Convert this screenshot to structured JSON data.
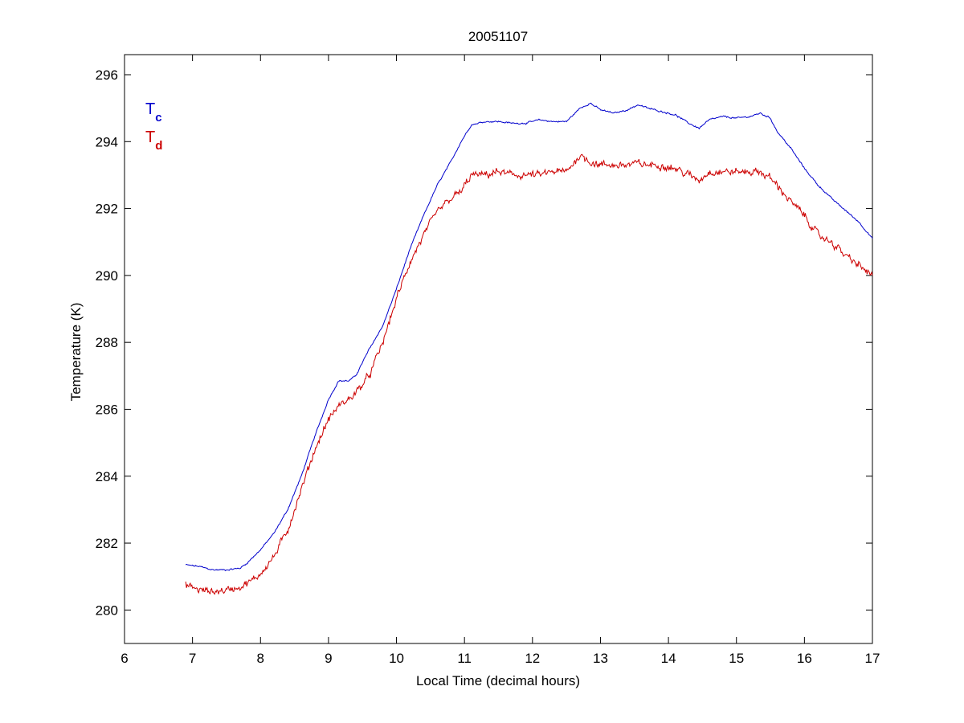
{
  "chart_data": {
    "type": "line",
    "title": "20051107",
    "xlabel": "Local Time (decimal hours)",
    "ylabel": "Temperature (K)",
    "xlim": [
      6,
      17
    ],
    "ylim": [
      279,
      296.6
    ],
    "xticks": [
      6,
      7,
      8,
      9,
      10,
      11,
      12,
      13,
      14,
      15,
      16,
      17
    ],
    "yticks": [
      280,
      282,
      284,
      286,
      288,
      290,
      292,
      294,
      296
    ],
    "grid": false,
    "legend_position": "top-left",
    "series": [
      {
        "name": "T",
        "subscript": "c",
        "color": "#0000cc",
        "noise": 0.03,
        "x": [
          6.9,
          7.1,
          7.3,
          7.5,
          7.7,
          7.8,
          7.9,
          8.0,
          8.2,
          8.4,
          8.6,
          8.8,
          9.0,
          9.15,
          9.3,
          9.4,
          9.6,
          9.8,
          10.0,
          10.2,
          10.4,
          10.6,
          10.8,
          10.95,
          11.1,
          11.3,
          11.5,
          11.7,
          11.9,
          12.1,
          12.3,
          12.5,
          12.7,
          12.85,
          13.0,
          13.2,
          13.4,
          13.55,
          13.7,
          13.9,
          14.1,
          14.3,
          14.45,
          14.6,
          14.8,
          15.0,
          15.2,
          15.35,
          15.5,
          15.6,
          15.8,
          16.0,
          16.2,
          16.4,
          16.6,
          16.8,
          17.0
        ],
        "y": [
          281.35,
          281.3,
          281.2,
          281.2,
          281.25,
          281.4,
          281.6,
          281.8,
          282.3,
          283.0,
          284.0,
          285.2,
          286.3,
          286.85,
          286.85,
          287.0,
          287.8,
          288.5,
          289.6,
          290.8,
          291.8,
          292.7,
          293.4,
          294.0,
          294.5,
          294.6,
          294.6,
          294.55,
          294.55,
          294.65,
          294.6,
          294.6,
          295.0,
          295.15,
          294.95,
          294.85,
          294.95,
          295.1,
          295.0,
          294.9,
          294.8,
          294.55,
          294.4,
          294.65,
          294.75,
          294.7,
          294.75,
          294.85,
          294.7,
          294.3,
          293.8,
          293.2,
          292.7,
          292.3,
          291.95,
          291.6,
          291.1
        ]
      },
      {
        "name": "T",
        "subscript": "d",
        "color": "#cc0000",
        "noise": 0.14,
        "x": [
          6.9,
          7.1,
          7.3,
          7.5,
          7.7,
          7.8,
          7.9,
          8.0,
          8.2,
          8.4,
          8.6,
          8.8,
          9.0,
          9.15,
          9.3,
          9.4,
          9.6,
          9.8,
          10.0,
          10.2,
          10.4,
          10.6,
          10.8,
          10.95,
          11.1,
          11.3,
          11.5,
          11.7,
          11.9,
          12.1,
          12.3,
          12.5,
          12.7,
          12.85,
          13.0,
          13.2,
          13.4,
          13.55,
          13.7,
          13.9,
          14.1,
          14.3,
          14.45,
          14.6,
          14.8,
          15.0,
          15.2,
          15.35,
          15.5,
          15.6,
          15.8,
          16.0,
          16.2,
          16.4,
          16.6,
          16.8,
          17.0
        ],
        "y": [
          280.75,
          280.6,
          280.55,
          280.6,
          280.7,
          280.8,
          280.9,
          281.1,
          281.6,
          282.4,
          283.6,
          284.8,
          285.7,
          286.1,
          286.3,
          286.5,
          287.0,
          288.0,
          289.3,
          290.4,
          291.2,
          291.9,
          292.3,
          292.5,
          293.0,
          293.0,
          293.1,
          293.0,
          293.0,
          293.0,
          293.1,
          293.1,
          293.6,
          293.4,
          293.3,
          293.3,
          293.3,
          293.35,
          293.3,
          293.3,
          293.2,
          293.0,
          292.85,
          293.1,
          293.1,
          293.1,
          293.1,
          293.1,
          292.9,
          292.7,
          292.2,
          291.8,
          291.2,
          291.0,
          290.6,
          290.3,
          290.0
        ]
      }
    ]
  }
}
